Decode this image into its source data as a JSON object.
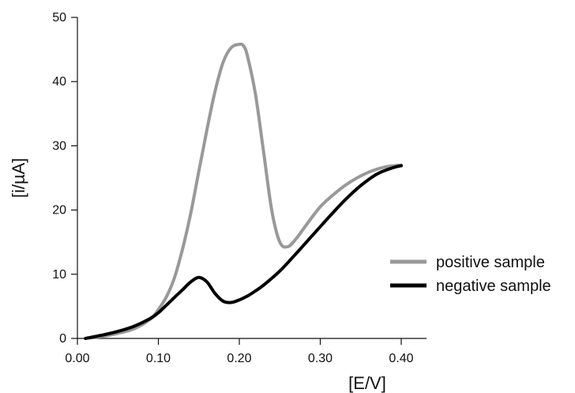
{
  "chart_data": {
    "type": "line",
    "xlabel": "[E/V]",
    "ylabel": "[i/µA]",
    "xlim": [
      0.0,
      0.4
    ],
    "ylim": [
      0,
      50
    ],
    "x_ticks": [
      0.0,
      0.1,
      0.2,
      0.3,
      0.4
    ],
    "x_tick_labels": [
      "0.00",
      "0.10",
      "0.20",
      "0.30",
      "0.40"
    ],
    "y_ticks": [
      0,
      10,
      20,
      30,
      40,
      50
    ],
    "y_tick_labels": [
      "0",
      "10",
      "20",
      "30",
      "40",
      "50"
    ],
    "grid": false,
    "legend_position": "right",
    "series": [
      {
        "name": "positive sample",
        "color": "#999999",
        "x": [
          0.01,
          0.03,
          0.05,
          0.07,
          0.09,
          0.1,
          0.11,
          0.12,
          0.13,
          0.14,
          0.15,
          0.16,
          0.17,
          0.18,
          0.19,
          0.2,
          0.205,
          0.21,
          0.22,
          0.23,
          0.24,
          0.25,
          0.26,
          0.27,
          0.28,
          0.3,
          0.32,
          0.34,
          0.36,
          0.38,
          0.4
        ],
        "y": [
          0.0,
          0.3,
          0.8,
          1.5,
          3.0,
          4.5,
          6.5,
          9.5,
          14.0,
          19.5,
          26.0,
          32.5,
          38.5,
          43.0,
          45.3,
          45.8,
          45.6,
          44.0,
          38.0,
          29.0,
          20.0,
          15.0,
          14.3,
          15.5,
          17.2,
          20.5,
          22.8,
          24.6,
          25.9,
          26.7,
          27.0
        ]
      },
      {
        "name": "negative sample",
        "color": "#000000",
        "x": [
          0.01,
          0.03,
          0.05,
          0.07,
          0.09,
          0.1,
          0.11,
          0.12,
          0.13,
          0.14,
          0.15,
          0.16,
          0.17,
          0.18,
          0.19,
          0.2,
          0.21,
          0.22,
          0.23,
          0.25,
          0.27,
          0.29,
          0.31,
          0.33,
          0.35,
          0.37,
          0.39,
          0.4
        ],
        "y": [
          0.0,
          0.5,
          1.1,
          1.9,
          3.1,
          4.0,
          5.2,
          6.4,
          7.6,
          8.8,
          9.5,
          8.8,
          7.0,
          5.8,
          5.6,
          6.0,
          6.6,
          7.4,
          8.3,
          10.5,
          13.2,
          16.0,
          18.8,
          21.5,
          23.8,
          25.6,
          26.6,
          26.9
        ]
      }
    ]
  }
}
